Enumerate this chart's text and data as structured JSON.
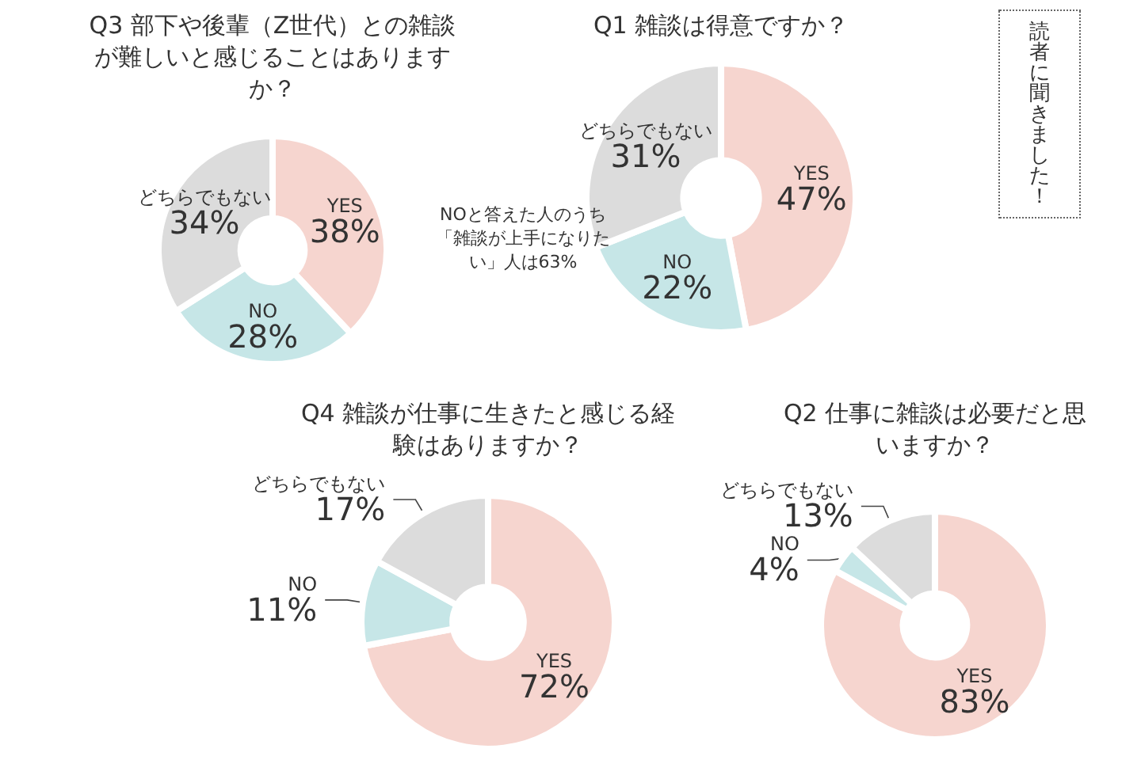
{
  "chart_data": [
    {
      "type": "donut",
      "title": "Q3 部下や後輩（Z世代）との雑談が難しいと感じることはありますか？",
      "categories": [
        "YES",
        "NO",
        "どちらでもない"
      ],
      "values": [
        38,
        28,
        34
      ],
      "value_labels": [
        "38%",
        "28%",
        "34%"
      ],
      "colors": [
        "#f6d5cf",
        "#c6e6e7",
        "#dcdcdc"
      ]
    },
    {
      "type": "donut",
      "title": "Q1 雑談は得意ですか？",
      "categories": [
        "YES",
        "NO",
        "どちらでもない"
      ],
      "values": [
        47,
        22,
        31
      ],
      "value_labels": [
        "47%",
        "22%",
        "31%"
      ],
      "colors": [
        "#f6d5cf",
        "#c6e6e7",
        "#dcdcdc"
      ],
      "annotations": [
        "NOと答えた人のうち「雑談が上手になりたい」人は63%"
      ]
    },
    {
      "type": "other",
      "title": "読者に聞きました！"
    },
    {
      "type": "donut",
      "title": "Q4 雑談が仕事に生きたと感じる経験はありますか？",
      "categories": [
        "YES",
        "NO",
        "どちらでもない"
      ],
      "values": [
        72,
        11,
        17
      ],
      "value_labels": [
        "72%",
        "11%",
        "17%"
      ],
      "colors": [
        "#f6d5cf",
        "#c6e6e7",
        "#dcdcdc"
      ]
    },
    {
      "type": "donut",
      "title": "Q2 仕事に雑談は必要だと思いますか？",
      "categories": [
        "YES",
        "NO",
        "どちらでもない"
      ],
      "values": [
        83,
        4,
        13
      ],
      "value_labels": [
        "83%",
        "4%",
        "13%"
      ],
      "colors": [
        "#f6d5cf",
        "#c6e6e7",
        "#dcdcdc"
      ]
    }
  ]
}
